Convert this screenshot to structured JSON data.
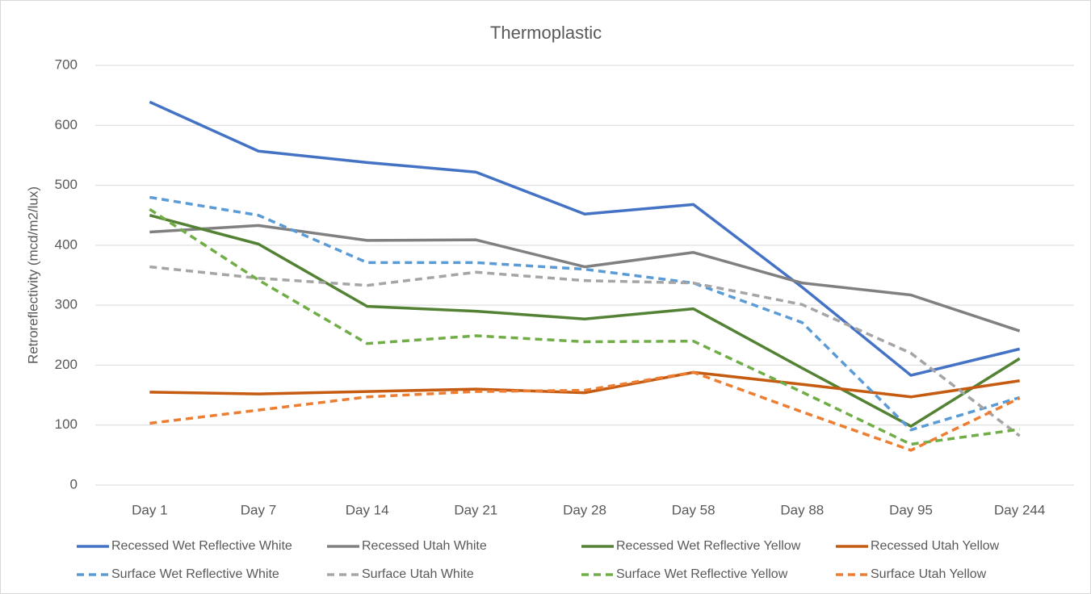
{
  "chart_data": {
    "type": "line",
    "title": "Thermoplastic",
    "y_label": "Retroreflectivity (mcd/m2/lux)",
    "categories": [
      "Day 1",
      "Day 7",
      "Day 14",
      "Day 21",
      "Day 28",
      "Day 58",
      "Day 88",
      "Day 95",
      "Day 244"
    ],
    "ylim": [
      0,
      700
    ],
    "yticks": [
      0,
      100,
      200,
      300,
      400,
      500,
      600,
      700
    ],
    "grid": true,
    "legend": "bottom",
    "series": [
      {
        "name": "Recessed Wet Reflective White",
        "color": "#4472c4",
        "dash": false,
        "values": [
          639,
          557,
          538,
          522,
          452,
          468,
          330,
          183,
          227
        ]
      },
      {
        "name": "Recessed Utah White",
        "color": "#808080",
        "dash": false,
        "values": [
          422,
          433,
          408,
          409,
          364,
          388,
          337,
          317,
          257
        ]
      },
      {
        "name": "Recessed Wet Reflective Yellow",
        "color": "#548235",
        "dash": false,
        "values": [
          450,
          402,
          298,
          290,
          277,
          294,
          195,
          98,
          211
        ]
      },
      {
        "name": "Recessed Utah Yellow",
        "color": "#c55a11",
        "dash": false,
        "values": [
          155,
          152,
          156,
          160,
          154,
          188,
          168,
          147,
          174
        ]
      },
      {
        "name": "Surface Wet Reflective White",
        "color": "#5b9bd5",
        "dash": true,
        "values": [
          480,
          450,
          371,
          371,
          360,
          337,
          271,
          92,
          146
        ]
      },
      {
        "name": "Surface Utah White",
        "color": "#a5a5a5",
        "dash": true,
        "values": [
          364,
          345,
          333,
          355,
          341,
          337,
          301,
          220,
          82
        ]
      },
      {
        "name": "Surface Wet Reflective Yellow",
        "color": "#70ad47",
        "dash": true,
        "values": [
          460,
          342,
          236,
          249,
          239,
          240,
          155,
          68,
          93
        ]
      },
      {
        "name": "Surface Utah Yellow",
        "color": "#ed7d31",
        "dash": true,
        "values": [
          103,
          125,
          147,
          156,
          158,
          188,
          122,
          58,
          145
        ]
      }
    ]
  }
}
